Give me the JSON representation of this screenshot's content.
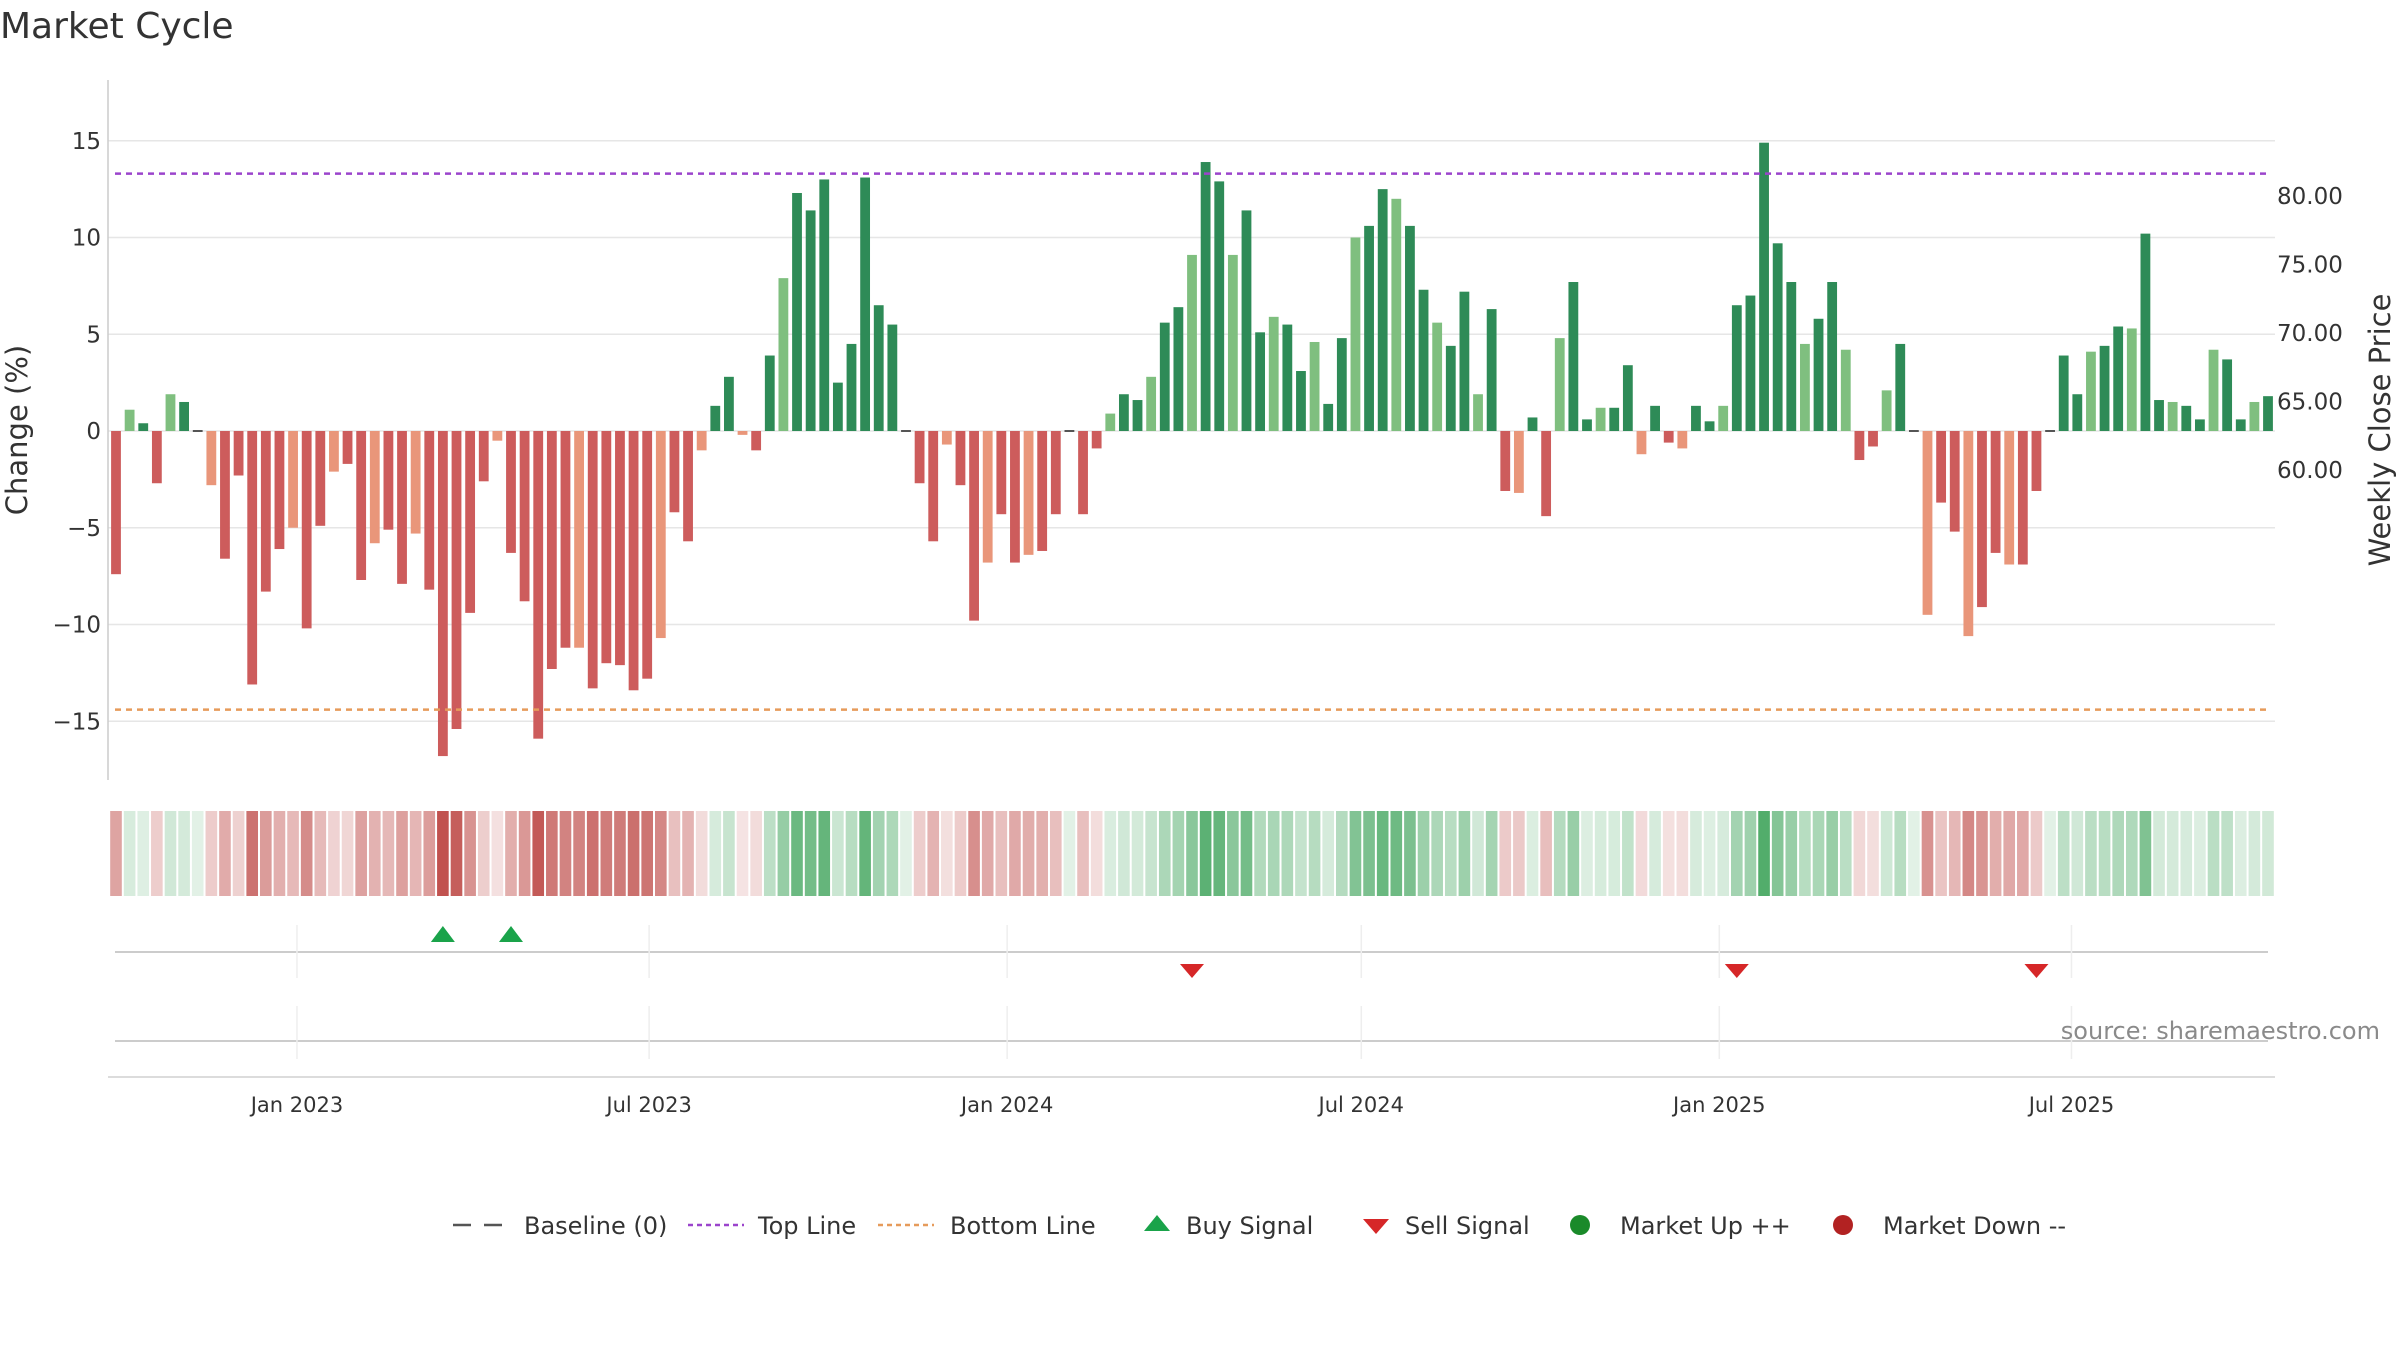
{
  "chart_data": {
    "type": "bar",
    "title": "Market Cycle",
    "ylabel": "Change (%)",
    "y2label": "Weekly Close Price",
    "ylim": [
      -18,
      18
    ],
    "y2lim": [
      59.0,
      82.0
    ],
    "yticks": [
      15,
      10,
      5,
      0,
      -5,
      -10,
      -15
    ],
    "yticklabels": [
      "15",
      "10",
      "5",
      "0",
      "−5",
      "−10",
      "−15"
    ],
    "y2ticks": [
      80,
      75,
      70,
      65,
      60
    ],
    "y2ticklabels": [
      "80.00",
      "75.00",
      "70.00",
      "65.00",
      "60.00"
    ],
    "x_start": "2022-09-30",
    "bar_interval_days": 7,
    "xticks": [
      {
        "date": "2023-01-01",
        "label": "Jan 2023"
      },
      {
        "date": "2023-07-01",
        "label": "Jul 2023"
      },
      {
        "date": "2024-01-01",
        "label": "Jan 2024"
      },
      {
        "date": "2024-07-01",
        "label": "Jul 2024"
      },
      {
        "date": "2025-01-01",
        "label": "Jan 2025"
      },
      {
        "date": "2025-07-01",
        "label": "Jul 2025"
      }
    ],
    "values": [
      -7.4,
      1.1,
      0.4,
      -2.7,
      1.9,
      1.5,
      0,
      -2.8,
      -6.6,
      -2.3,
      -13.1,
      -8.3,
      -6.1,
      -5.0,
      -10.2,
      -4.9,
      -2.1,
      -1.7,
      -7.7,
      -5.8,
      -5.1,
      -7.9,
      -5.3,
      -8.2,
      -16.8,
      -15.4,
      -9.4,
      -2.6,
      -0.5,
      -6.3,
      -8.8,
      -15.9,
      -12.3,
      -11.2,
      -11.2,
      -13.3,
      -12.0,
      -12.1,
      -13.4,
      -12.8,
      -10.7,
      -4.2,
      -5.7,
      -1.0,
      1.3,
      2.8,
      -0.2,
      -1.0,
      3.9,
      7.9,
      12.3,
      11.4,
      13.0,
      2.5,
      4.5,
      13.1,
      6.5,
      5.5,
      0,
      -2.7,
      -5.7,
      -0.7,
      -2.8,
      -9.8,
      -6.8,
      -4.3,
      -6.8,
      -6.4,
      -6.2,
      -4.3,
      0,
      -4.3,
      -0.9,
      0.9,
      1.9,
      1.6,
      2.8,
      5.6,
      6.4,
      9.1,
      13.9,
      12.9,
      9.1,
      11.4,
      5.1,
      5.9,
      5.5,
      3.1,
      4.6,
      1.4,
      4.8,
      10.0,
      10.6,
      12.5,
      12.0,
      10.6,
      7.3,
      5.6,
      4.4,
      7.2,
      1.9,
      6.3,
      -3.1,
      -3.2,
      0.7,
      -4.4,
      4.8,
      7.7,
      0.6,
      1.2,
      1.2,
      3.4,
      -1.2,
      1.3,
      -0.6,
      -0.9,
      1.3,
      0.5,
      1.3,
      6.5,
      7.0,
      14.9,
      9.7,
      7.7,
      4.5,
      5.8,
      7.7,
      4.2,
      -1.5,
      -0.8,
      2.1,
      4.5,
      0,
      -9.5,
      -3.7,
      -5.2,
      -10.6,
      -9.1,
      -6.3,
      -6.9,
      -6.9,
      -3.1,
      0,
      3.9,
      1.9,
      4.1,
      4.4,
      5.4,
      5.3,
      10.2,
      1.6,
      1.5,
      1.3,
      0.6,
      4.2,
      3.7,
      0.6,
      1.5,
      1.8
    ],
    "reference_lines": [
      {
        "name": "Baseline (0)",
        "y": 0,
        "style": "dashed",
        "color": "#555555"
      },
      {
        "name": "Top Line",
        "y": 13.3,
        "style": "dotted",
        "color": "#9b44cc"
      },
      {
        "name": "Bottom Line",
        "y": -14.4,
        "style": "dotted",
        "color": "#e69b5b"
      }
    ],
    "signals": [
      {
        "type": "buy",
        "date": "2023-03-17"
      },
      {
        "type": "buy",
        "date": "2023-04-21"
      },
      {
        "type": "sell",
        "date": "2024-04-05"
      },
      {
        "type": "sell",
        "date": "2025-01-10"
      },
      {
        "type": "sell",
        "date": "2025-06-13"
      }
    ],
    "source": "source: sharemaestro.com",
    "legend": [
      {
        "key": "baseline",
        "label": "Baseline (0)"
      },
      {
        "key": "top",
        "label": "Top Line"
      },
      {
        "key": "bottom",
        "label": "Bottom Line"
      },
      {
        "key": "buy",
        "label": "Buy Signal"
      },
      {
        "key": "sell",
        "label": "Sell Signal"
      },
      {
        "key": "up",
        "label": "Market Up ++"
      },
      {
        "key": "down",
        "label": "Market Down --"
      }
    ],
    "colors": {
      "pos_strong": "#2e8b57",
      "pos_light": "#7fbf7f",
      "neg_strong": "#cd5c5c",
      "neg_light": "#e9967a",
      "buy": "#1aa34a",
      "sell": "#d62728",
      "market_up": "#1a8a2a",
      "market_down": "#b22222",
      "top_line": "#9b44cc",
      "bottom_line": "#e69b5b",
      "baseline": "#555555",
      "grid": "#e6e6e6"
    }
  }
}
